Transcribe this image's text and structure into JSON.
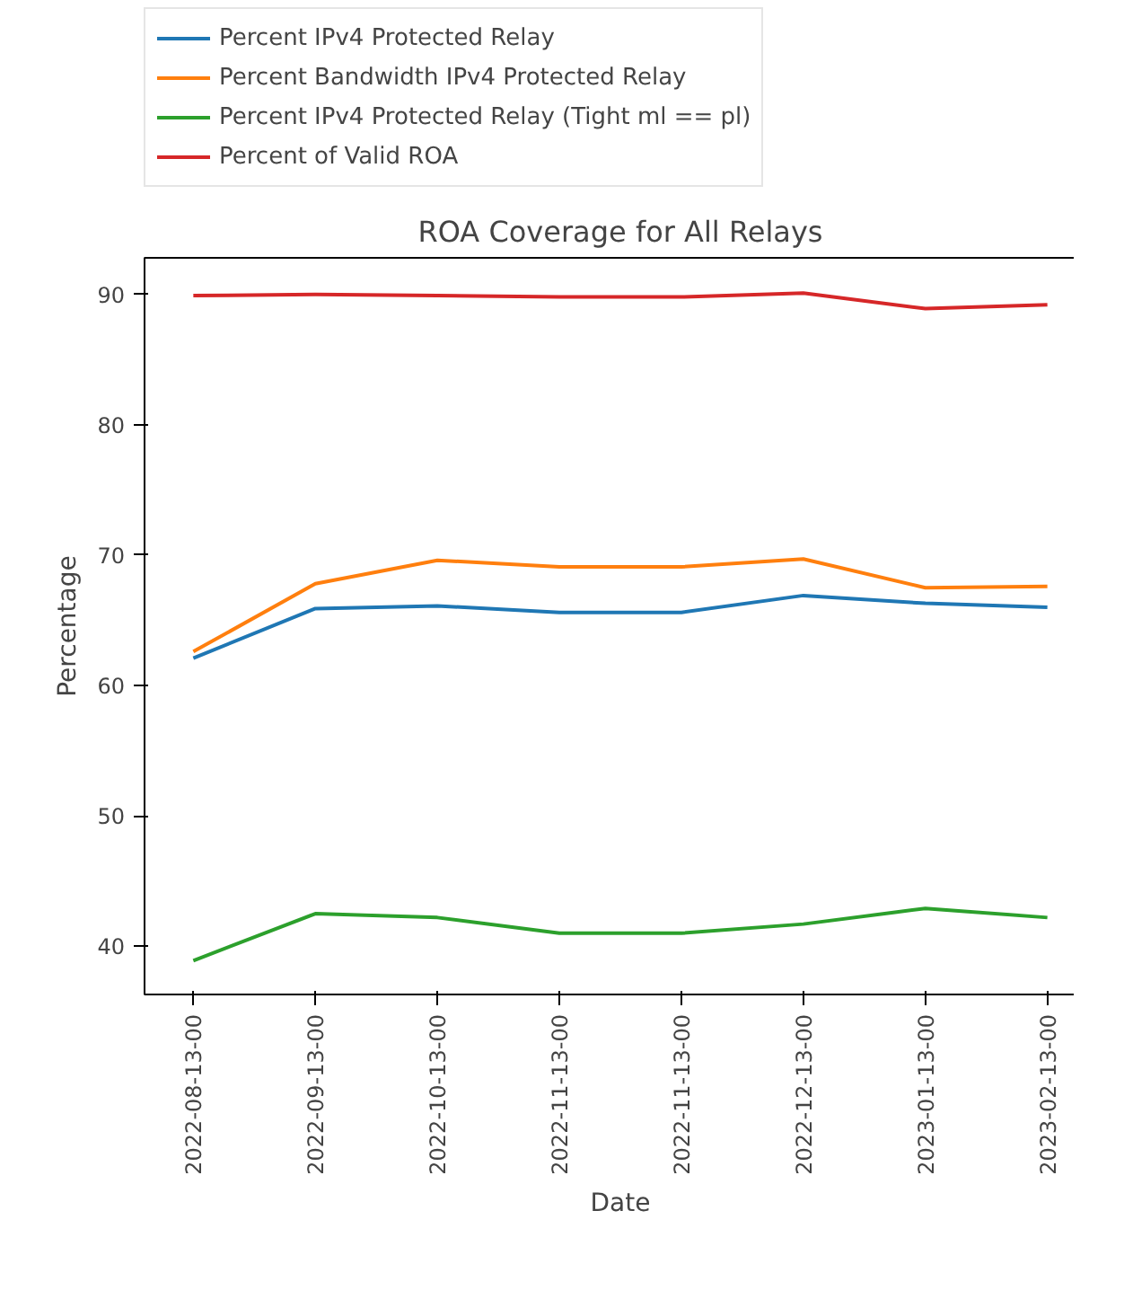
{
  "chart_data": {
    "type": "line",
    "title": "ROA Coverage for All Relays",
    "xlabel": "Date",
    "ylabel": "Percentage",
    "categories": [
      "2022-08-13-00",
      "2022-09-13-00",
      "2022-10-13-00",
      "2022-11-13-00",
      "2022-11-13-00",
      "2022-12-13-00",
      "2023-01-13-00",
      "2023-02-13-00"
    ],
    "series": [
      {
        "name": "Percent IPv4 Protected Relay",
        "color": "#1f77b4",
        "values": [
          62.1,
          65.9,
          66.1,
          65.6,
          65.6,
          66.9,
          66.3,
          66.0
        ]
      },
      {
        "name": "Percent Bandwidth IPv4 Protected Relay",
        "color": "#ff7f0e",
        "values": [
          62.6,
          67.8,
          69.6,
          69.1,
          69.1,
          69.7,
          67.5,
          67.6
        ]
      },
      {
        "name": "Percent IPv4 Protected Relay (Tight ml == pl)",
        "color": "#2ca02c",
        "values": [
          38.9,
          42.5,
          42.2,
          41.0,
          41.0,
          41.7,
          42.9,
          42.2
        ]
      },
      {
        "name": "Percent of Valid ROA",
        "color": "#d62728",
        "values": [
          89.9,
          90.0,
          89.9,
          89.8,
          89.8,
          90.1,
          88.9,
          89.2
        ]
      }
    ],
    "ylim": [
      36.3,
      92.8
    ],
    "yticks": [
      40,
      50,
      60,
      70,
      80,
      90
    ],
    "grid": false,
    "legend": "top",
    "line_style": "solid",
    "marker": "none"
  }
}
